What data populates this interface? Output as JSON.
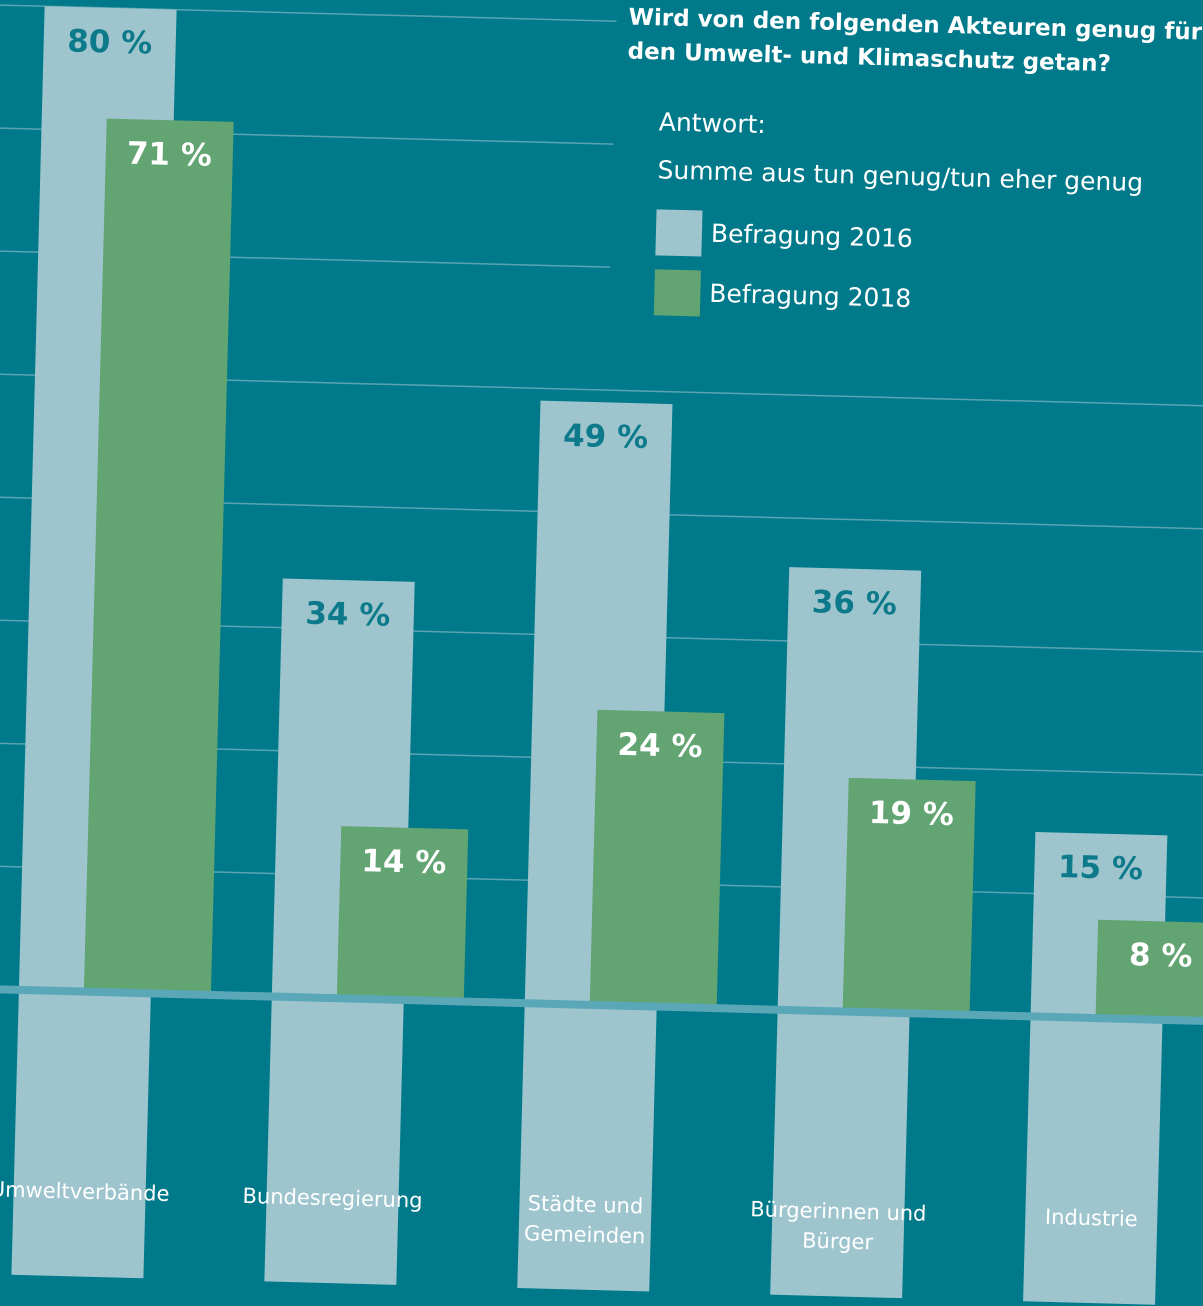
{
  "chart_data": {
    "type": "bar",
    "title": "Wird von den folgenden Akteuren genug für den Umwelt- und Klimaschutz getan?",
    "answer_label": "Antwort:",
    "subtitle": "Summe aus tun genug/tun eher genug",
    "categories": [
      "Umweltverbände",
      "Bundesregierung",
      "Städte und Gemeinden",
      "Bürgerinnen und Bürger",
      "Industrie"
    ],
    "series": [
      {
        "name": "Befragung 2016",
        "color": "#9ec5cd",
        "values": [
          80,
          34,
          49,
          36,
          15
        ],
        "value_labels": [
          "80 %",
          "34 %",
          "49 %",
          "36 %",
          "15 %"
        ]
      },
      {
        "name": "Befragung 2018",
        "color": "#62a472",
        "values": [
          71,
          14,
          24,
          19,
          8
        ],
        "value_labels": [
          "71 %",
          "14 %",
          "24 %",
          "19 %",
          "8 %"
        ]
      }
    ],
    "ylim": [
      0,
      80
    ],
    "yticks": [
      0,
      10,
      20,
      30,
      40,
      50,
      60,
      70,
      80
    ],
    "grid": true
  }
}
